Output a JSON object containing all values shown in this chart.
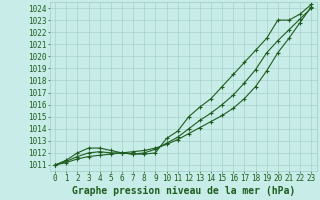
{
  "title": "Graphe pression niveau de la mer (hPa)",
  "xlim": [
    -0.5,
    23.5
  ],
  "ylim": [
    1010.5,
    1024.5
  ],
  "yticks": [
    1011,
    1012,
    1013,
    1014,
    1015,
    1016,
    1017,
    1018,
    1019,
    1020,
    1021,
    1022,
    1023,
    1024
  ],
  "xticks": [
    0,
    1,
    2,
    3,
    4,
    5,
    6,
    7,
    8,
    9,
    10,
    11,
    12,
    13,
    14,
    15,
    16,
    17,
    18,
    19,
    20,
    21,
    22,
    23
  ],
  "bg_color": "#c8ede8",
  "grid_color": "#9dccc4",
  "line_color": "#1e5c1e",
  "marker_color": "#1e5c1e",
  "line1_x": [
    0,
    1,
    2,
    3,
    4,
    5,
    6,
    7,
    8,
    9,
    10,
    11,
    12,
    13,
    14,
    15,
    16,
    17,
    18,
    19,
    20,
    21,
    22,
    23
  ],
  "line1_y": [
    1011.0,
    1011.2,
    1011.5,
    1011.7,
    1011.8,
    1011.9,
    1012.0,
    1012.1,
    1012.2,
    1012.4,
    1012.7,
    1013.1,
    1013.6,
    1014.1,
    1014.6,
    1015.1,
    1015.7,
    1016.5,
    1017.5,
    1018.8,
    1020.3,
    1021.5,
    1022.8,
    1024.1
  ],
  "line2_x": [
    0,
    1,
    2,
    3,
    4,
    5,
    6,
    7,
    8,
    9,
    10,
    11,
    12,
    13,
    14,
    15,
    16,
    17,
    18,
    19,
    20,
    21,
    22,
    23
  ],
  "line2_y": [
    1011.0,
    1011.3,
    1011.7,
    1012.0,
    1012.1,
    1012.0,
    1012.0,
    1011.9,
    1012.0,
    1012.3,
    1012.8,
    1013.3,
    1014.0,
    1014.7,
    1015.3,
    1016.0,
    1016.8,
    1017.8,
    1018.9,
    1020.3,
    1021.3,
    1022.2,
    1023.1,
    1024.0
  ],
  "line3_x": [
    0,
    1,
    2,
    3,
    4,
    5,
    6,
    7,
    8,
    9,
    10,
    11,
    12,
    13,
    14,
    15,
    16,
    17,
    18,
    19,
    20,
    21,
    22,
    23
  ],
  "line3_y": [
    1011.0,
    1011.4,
    1012.0,
    1012.4,
    1012.4,
    1012.2,
    1012.0,
    1011.9,
    1011.9,
    1012.0,
    1013.2,
    1013.8,
    1015.0,
    1015.8,
    1016.5,
    1017.5,
    1018.5,
    1019.5,
    1020.5,
    1021.5,
    1023.0,
    1023.0,
    1023.5,
    1024.3
  ],
  "title_fontsize": 7,
  "tick_fontsize": 5.5
}
